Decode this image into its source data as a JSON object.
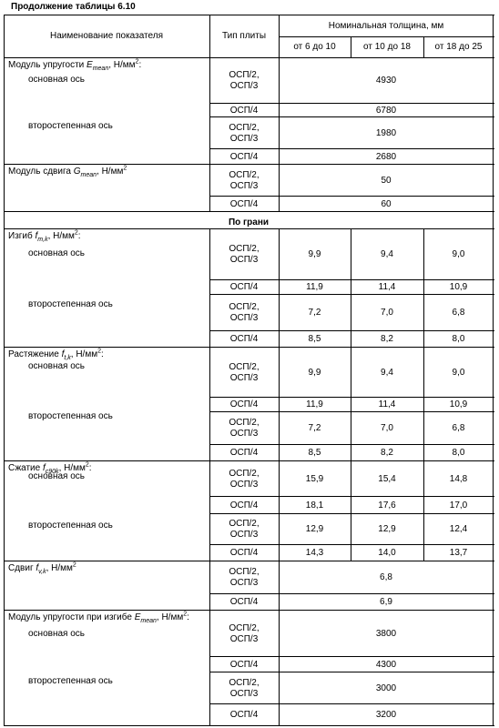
{
  "caption": "Продолжение таблицы 6.10",
  "header": {
    "col_name": "Наименование показателя",
    "col_type": "Тип плиты",
    "col_thickness": "Номинальная толщина, мм",
    "ranges": [
      "от 6 до 10",
      "от 10 до 18",
      "от 18 до 25"
    ]
  },
  "labels": {
    "n_emean": "Модуль упругости ",
    "sym_E": "E",
    "sub_mean": "mean",
    "unit_nmm": ", Н/мм",
    "sup_2": "2",
    "colon": ":",
    "main_axis": "основная ось",
    "secondary_axis": "второстепенная ось",
    "n_gmean": "Модуль сдвига ",
    "sym_G": "G",
    "section": "По грани",
    "n_bend": "Изгиб ",
    "sym_f": "f",
    "sub_mk": "m,k",
    "n_tension": "Растяжение ",
    "sub_tk": "t,k",
    "n_comp": "Сжатие ",
    "sub_c90k": "c90k",
    "n_shear": "Сдвиг ",
    "sub_vk": "v,k",
    "n_ebend": "Модуль упругости при изгибе ",
    "osp23": "ОСП/2,\nОСП/3",
    "osp4": "ОСП/4"
  },
  "values": {
    "e_mean": [
      "4930",
      "6780",
      "1980",
      "2680"
    ],
    "g_mean": [
      "50",
      "60"
    ],
    "bend": [
      [
        "9,9",
        "9,4",
        "9,0"
      ],
      [
        "11,9",
        "11,4",
        "10,9"
      ],
      [
        "7,2",
        "7,0",
        "6,8"
      ],
      [
        "8,5",
        "8,2",
        "8,0"
      ]
    ],
    "tension": [
      [
        "9,9",
        "9,4",
        "9,0"
      ],
      [
        "11,9",
        "11,4",
        "10,9"
      ],
      [
        "7,2",
        "7,0",
        "6,8"
      ],
      [
        "8,5",
        "8,2",
        "8,0"
      ]
    ],
    "compression": [
      [
        "15,9",
        "15,4",
        "14,8"
      ],
      [
        "18,1",
        "17,6",
        "17,0"
      ],
      [
        "12,9",
        "12,9",
        "12,4"
      ],
      [
        "14,3",
        "14,0",
        "13,7"
      ]
    ],
    "shear": [
      "6,8",
      "6,9"
    ],
    "e_bend": [
      "3800",
      "4300",
      "3000",
      "3200"
    ]
  }
}
